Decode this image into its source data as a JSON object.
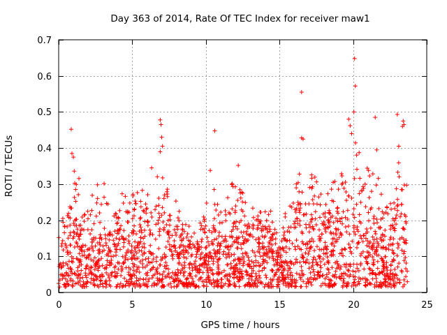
{
  "chart_data": {
    "type": "scatter",
    "title": "Day 363 of 2014, Rate Of TEC Index for receiver maw1",
    "xlabel": "GPS time / hours",
    "ylabel": "ROTI / TECUs",
    "xlim": [
      0,
      25
    ],
    "ylim": [
      0,
      0.7
    ],
    "x_ticks": [
      0,
      5,
      10,
      15,
      20,
      25
    ],
    "x_tick_labels": [
      "0",
      "5",
      "10",
      "15",
      "20",
      "25"
    ],
    "y_ticks": [
      0,
      0.1,
      0.2,
      0.3,
      0.4,
      0.5,
      0.6,
      0.7
    ],
    "y_tick_labels": [
      "0",
      "0.1",
      "0.2",
      "0.3",
      "0.4",
      "0.5",
      "0.6",
      "0.7"
    ],
    "grid": true,
    "marker": "+",
    "marker_color": "#ff0000",
    "data_x_range": [
      0,
      23.7
    ],
    "envelope_hours": [
      0,
      0.5,
      1,
      1.5,
      2,
      2.5,
      3,
      3.5,
      4,
      4.5,
      5,
      5.5,
      6,
      6.5,
      7,
      7.5,
      8,
      8.5,
      9,
      9.5,
      10,
      10.5,
      11,
      11.5,
      12,
      12.5,
      13,
      13.5,
      14,
      14.5,
      15,
      15.5,
      16,
      16.5,
      17,
      17.5,
      18,
      18.5,
      19,
      19.5,
      20,
      20.5,
      21,
      21.5,
      22,
      22.5,
      23,
      23.5
    ],
    "envelope_typical_max": [
      0.17,
      0.2,
      0.3,
      0.3,
      0.22,
      0.28,
      0.3,
      0.2,
      0.25,
      0.27,
      0.25,
      0.28,
      0.33,
      0.3,
      0.33,
      0.25,
      0.22,
      0.18,
      0.2,
      0.17,
      0.25,
      0.27,
      0.22,
      0.26,
      0.3,
      0.28,
      0.22,
      0.24,
      0.25,
      0.22,
      0.16,
      0.22,
      0.3,
      0.33,
      0.32,
      0.3,
      0.3,
      0.32,
      0.35,
      0.33,
      0.38,
      0.35,
      0.33,
      0.3,
      0.25,
      0.22,
      0.35,
      0.35
    ],
    "outliers": [
      {
        "x": 0.85,
        "y": 0.452
      },
      {
        "x": 0.9,
        "y": 0.385
      },
      {
        "x": 1.0,
        "y": 0.375
      },
      {
        "x": 6.9,
        "y": 0.478
      },
      {
        "x": 6.95,
        "y": 0.465
      },
      {
        "x": 7.0,
        "y": 0.43
      },
      {
        "x": 7.05,
        "y": 0.405
      },
      {
        "x": 6.9,
        "y": 0.39
      },
      {
        "x": 10.6,
        "y": 0.448
      },
      {
        "x": 10.3,
        "y": 0.338
      },
      {
        "x": 12.2,
        "y": 0.352
      },
      {
        "x": 16.5,
        "y": 0.555
      },
      {
        "x": 16.5,
        "y": 0.428
      },
      {
        "x": 16.6,
        "y": 0.425
      },
      {
        "x": 19.7,
        "y": 0.48
      },
      {
        "x": 19.8,
        "y": 0.462
      },
      {
        "x": 19.9,
        "y": 0.44
      },
      {
        "x": 20.1,
        "y": 0.648
      },
      {
        "x": 20.15,
        "y": 0.572
      },
      {
        "x": 20.05,
        "y": 0.5
      },
      {
        "x": 21.5,
        "y": 0.485
      },
      {
        "x": 21.6,
        "y": 0.395
      },
      {
        "x": 23.0,
        "y": 0.493
      },
      {
        "x": 23.4,
        "y": 0.475
      },
      {
        "x": 23.45,
        "y": 0.465
      },
      {
        "x": 23.35,
        "y": 0.46
      },
      {
        "x": 23.1,
        "y": 0.405
      }
    ]
  }
}
